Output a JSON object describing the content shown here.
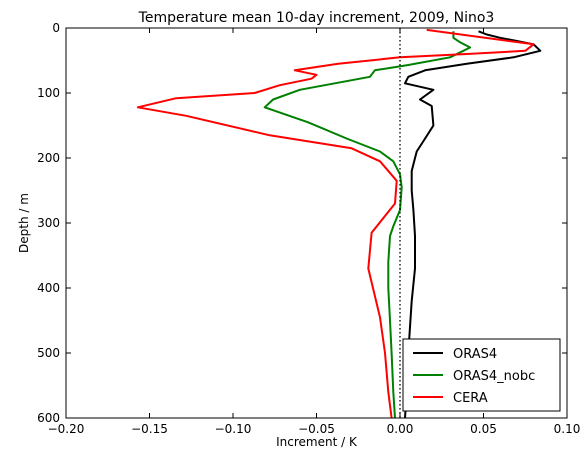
{
  "chart_data": {
    "type": "line",
    "title": "Temperature mean 10-day increment, 2009, Nino3",
    "xlabel": "Increment / K",
    "ylabel": "Depth / m",
    "xlim": [
      -0.2,
      0.1
    ],
    "ylim": [
      600,
      0
    ],
    "y_inverted": true,
    "grid": false,
    "legend_position": "lower-right",
    "xticks": [
      -0.2,
      -0.15,
      -0.1,
      -0.05,
      0.0,
      0.05,
      0.1
    ],
    "xtick_labels": [
      "−0.20",
      "−0.15",
      "−0.10",
      "−0.05",
      "0.00",
      "0.05",
      "0.10"
    ],
    "yticks": [
      0,
      100,
      200,
      300,
      400,
      500,
      600
    ],
    "ytick_labels": [
      "0",
      "100",
      "200",
      "300",
      "400",
      "500",
      "600"
    ],
    "reference_line": {
      "x": 0,
      "style": "dotted",
      "color": "#000000"
    },
    "series": [
      {
        "name": "ORAS4",
        "color": "#000000",
        "points": [
          [
            0.047,
            5
          ],
          [
            0.052,
            10
          ],
          [
            0.06,
            15
          ],
          [
            0.07,
            20
          ],
          [
            0.08,
            25
          ],
          [
            0.084,
            35
          ],
          [
            0.068,
            45
          ],
          [
            0.04,
            55
          ],
          [
            0.015,
            65
          ],
          [
            0.005,
            75
          ],
          [
            0.003,
            85
          ],
          [
            0.02,
            95
          ],
          [
            0.012,
            110
          ],
          [
            0.019,
            120
          ],
          [
            0.02,
            150
          ],
          [
            0.015,
            170
          ],
          [
            0.01,
            190
          ],
          [
            0.007,
            220
          ],
          [
            0.007,
            250
          ],
          [
            0.008,
            280
          ],
          [
            0.009,
            320
          ],
          [
            0.009,
            370
          ],
          [
            0.007,
            420
          ],
          [
            0.006,
            460
          ],
          [
            0.005,
            500
          ],
          [
            0.004,
            560
          ],
          [
            0.003,
            600
          ]
        ]
      },
      {
        "name": "ORAS4_nobc",
        "color": "#008000",
        "points": [
          [
            0.032,
            5
          ],
          [
            0.032,
            15
          ],
          [
            0.036,
            22
          ],
          [
            0.042,
            30
          ],
          [
            0.03,
            45
          ],
          [
            0.005,
            57
          ],
          [
            -0.015,
            65
          ],
          [
            -0.018,
            75
          ],
          [
            -0.06,
            95
          ],
          [
            -0.076,
            110
          ],
          [
            -0.081,
            122
          ],
          [
            -0.055,
            145
          ],
          [
            -0.032,
            170
          ],
          [
            -0.012,
            190
          ],
          [
            -0.004,
            205
          ],
          [
            0.0,
            225
          ],
          [
            0.001,
            245
          ],
          [
            0.0,
            280
          ],
          [
            -0.004,
            305
          ],
          [
            -0.006,
            320
          ],
          [
            -0.007,
            360
          ],
          [
            -0.007,
            400
          ],
          [
            -0.006,
            450
          ],
          [
            -0.005,
            500
          ],
          [
            -0.004,
            560
          ],
          [
            -0.003,
            600
          ]
        ]
      },
      {
        "name": "CERA",
        "color": "#ff0000",
        "points": [
          [
            0.016,
            3
          ],
          [
            0.08,
            25
          ],
          [
            0.075,
            35
          ],
          [
            0.04,
            40
          ],
          [
            0.0,
            45
          ],
          [
            -0.037,
            55
          ],
          [
            -0.063,
            65
          ],
          [
            -0.05,
            72
          ],
          [
            -0.053,
            78
          ],
          [
            -0.072,
            88
          ],
          [
            -0.087,
            100
          ],
          [
            -0.134,
            108
          ],
          [
            -0.157,
            122
          ],
          [
            -0.128,
            135
          ],
          [
            -0.078,
            165
          ],
          [
            -0.029,
            185
          ],
          [
            -0.012,
            205
          ],
          [
            -0.002,
            235
          ],
          [
            -0.003,
            270
          ],
          [
            -0.017,
            315
          ],
          [
            -0.019,
            370
          ],
          [
            -0.012,
            445
          ],
          [
            -0.009,
            500
          ],
          [
            -0.007,
            560
          ],
          [
            -0.005,
            600
          ]
        ]
      }
    ]
  }
}
